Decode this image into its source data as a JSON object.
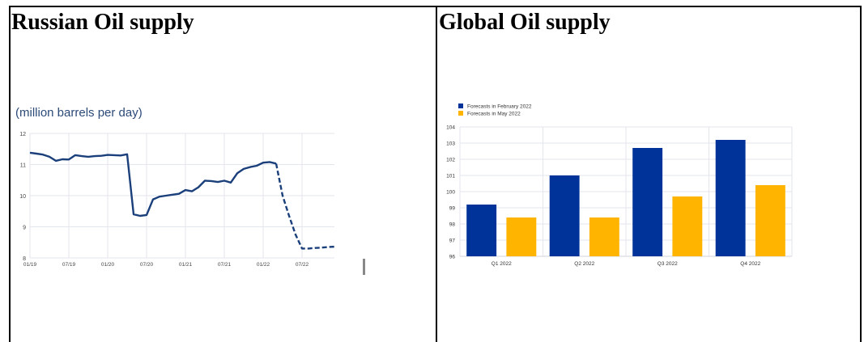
{
  "cells": {
    "left_title": "Russian Oil supply",
    "right_title": "Global Oil supply"
  },
  "colors": {
    "line": "#1a3f7a",
    "feb": "#003399",
    "may": "#ffb400",
    "grid": "#e3e6ec",
    "unit_text": "#2c4a78"
  },
  "chart_data": [
    {
      "type": "line",
      "unit_label": "(million barrels per day)",
      "ylim": [
        8,
        12
      ],
      "yticks": [
        8,
        9,
        10,
        11,
        12
      ],
      "xlim": [
        "2019-01",
        "2022-12"
      ],
      "xticks": [
        "01/19",
        "07/19",
        "01/20",
        "07/20",
        "01/21",
        "07/21",
        "01/22",
        "07/22"
      ],
      "grid": true,
      "series": [
        {
          "style": "solid",
          "x": [
            "2019-01",
            "2019-02",
            "2019-03",
            "2019-04",
            "2019-05",
            "2019-06",
            "2019-07",
            "2019-08",
            "2019-09",
            "2019-10",
            "2019-11",
            "2019-12",
            "2020-01",
            "2020-02",
            "2020-03",
            "2020-04",
            "2020-05",
            "2020-06",
            "2020-07",
            "2020-08",
            "2020-09",
            "2020-10",
            "2020-11",
            "2020-12",
            "2021-01",
            "2021-02",
            "2021-03",
            "2021-04",
            "2021-05",
            "2021-06",
            "2021-07",
            "2021-08",
            "2021-09",
            "2021-10",
            "2021-11",
            "2021-12",
            "2022-01",
            "2022-02",
            "2022-03"
          ],
          "y": [
            11.38,
            11.35,
            11.32,
            11.25,
            11.12,
            11.17,
            11.16,
            11.3,
            11.27,
            11.25,
            11.27,
            11.28,
            11.31,
            11.3,
            11.29,
            11.33,
            9.4,
            9.35,
            9.38,
            9.88,
            9.97,
            10.0,
            10.03,
            10.06,
            10.18,
            10.14,
            10.27,
            10.48,
            10.47,
            10.44,
            10.48,
            10.42,
            10.72,
            10.86,
            10.92,
            10.96,
            11.06,
            11.08,
            11.03
          ]
        },
        {
          "style": "dashed",
          "x": [
            "2022-03",
            "2022-04",
            "2022-05",
            "2022-06",
            "2022-07",
            "2022-08",
            "2022-09",
            "2022-10",
            "2022-11",
            "2022-12"
          ],
          "y": [
            11.03,
            10.0,
            9.35,
            8.75,
            8.3,
            8.3,
            8.32,
            8.33,
            8.35,
            8.36
          ]
        }
      ]
    },
    {
      "type": "bar",
      "ylim": [
        96,
        104
      ],
      "yticks": [
        96,
        97,
        98,
        99,
        100,
        101,
        102,
        103,
        104
      ],
      "categories": [
        "Q1 2022",
        "Q2 2022",
        "Q3 2022",
        "Q4 2022"
      ],
      "legend_position": "top-left",
      "grid": true,
      "series": [
        {
          "name": "Forecasts in February 2022",
          "values": [
            99.2,
            101.0,
            102.7,
            103.2
          ]
        },
        {
          "name": "Forecasts in May 2022",
          "values": [
            98.4,
            98.4,
            99.7,
            100.4
          ]
        }
      ]
    }
  ]
}
